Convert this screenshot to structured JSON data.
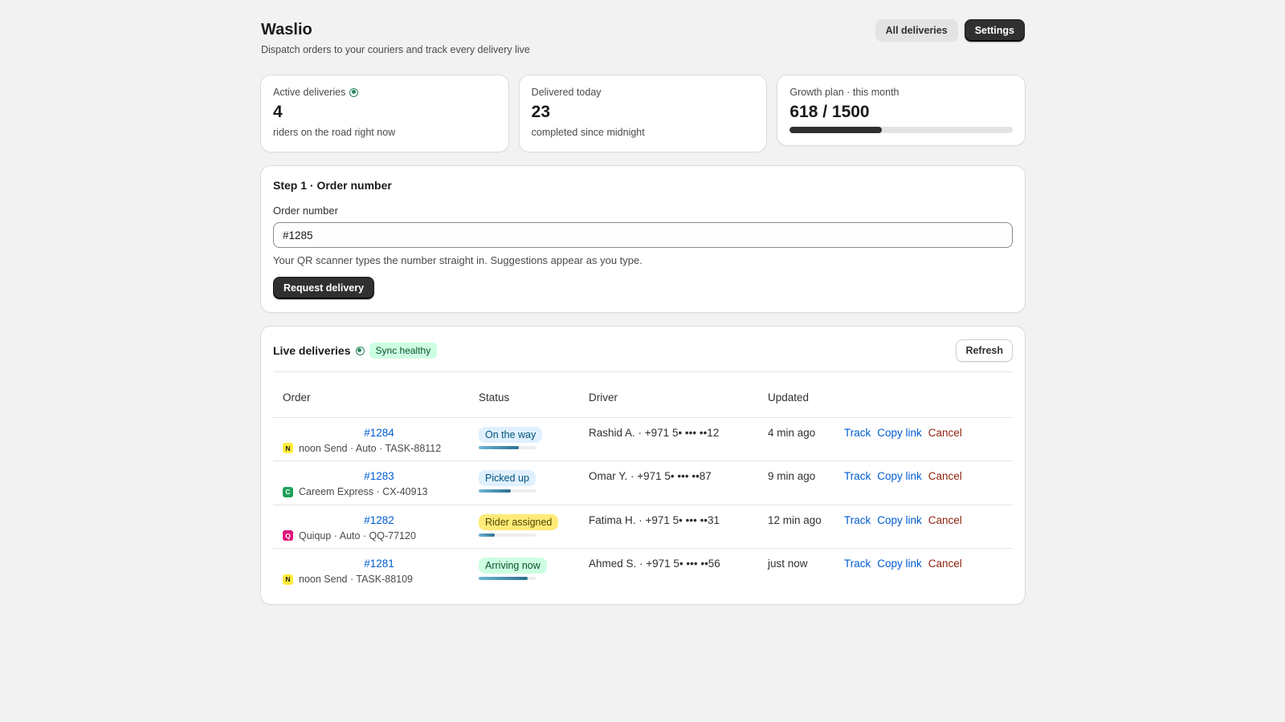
{
  "header": {
    "title": "Waslio",
    "subtitle": "Dispatch orders to your couriers and track every delivery live",
    "all_deliveries_label": "All deliveries",
    "settings_label": "Settings"
  },
  "stats": {
    "active": {
      "label": "Active deliveries",
      "value": "4",
      "sub": "riders on the road right now"
    },
    "delivered": {
      "label": "Delivered today",
      "value": "23",
      "sub": "completed since midnight"
    },
    "plan": {
      "label": "Growth plan · this month",
      "value": "618 / 1500",
      "used": 618,
      "limit": 1500
    }
  },
  "step": {
    "title": "Step 1 · Order number",
    "field_label": "Order number",
    "field_value": "#1285",
    "help": "Your QR scanner types the number straight in. Suggestions appear as you type.",
    "submit_label": "Request delivery"
  },
  "live": {
    "title": "Live deliveries",
    "sync_label": "Sync healthy",
    "refresh_label": "Refresh",
    "columns": [
      "Order",
      "Status",
      "Driver",
      "Updated"
    ],
    "rows": [
      {
        "order": "#1284",
        "courier_letter": "N",
        "courier_color": "#ffeb3b",
        "courier_text_color": "#1a1a1a",
        "meta": "noon Send · Auto · TASK-88112",
        "status": "On the way",
        "status_bg": "#e0f0ff",
        "status_fg": "#00527c",
        "progress": 0.7,
        "driver": "Rashid A. · +971 5• ••• ••12",
        "updated": "4 min ago",
        "track": "Track",
        "copy": "Copy link",
        "cancel": "Cancel"
      },
      {
        "order": "#1283",
        "courier_letter": "C",
        "courier_color": "#1fa05a",
        "courier_text_color": "#ffffff",
        "meta": "Careem Express · CX-40913",
        "status": "Picked up",
        "status_bg": "#e0f0ff",
        "status_fg": "#00527c",
        "progress": 0.55,
        "driver": "Omar Y. · +971 5• ••• ••87",
        "updated": "9 min ago",
        "track": "Track",
        "copy": "Copy link",
        "cancel": "Cancel"
      },
      {
        "order": "#1282",
        "courier_letter": "Q",
        "courier_color": "#e0157a",
        "courier_text_color": "#ffffff",
        "meta": "Quiqup · Auto · QQ-77120",
        "status": "Rider assigned",
        "status_bg": "#ffeb78",
        "status_fg": "#4f4700",
        "progress": 0.28,
        "driver": "Fatima H. · +971 5• ••• ••31",
        "updated": "12 min ago",
        "track": "Track",
        "copy": "Copy link",
        "cancel": "Cancel"
      },
      {
        "order": "#1281",
        "courier_letter": "N",
        "courier_color": "#ffeb3b",
        "courier_text_color": "#1a1a1a",
        "meta": "noon Send · TASK-88109",
        "status": "Arriving now",
        "status_bg": "#cdfee1",
        "status_fg": "#0c5132",
        "progress": 0.85,
        "driver": "Ahmed S. · +971 5• ••• ••56",
        "updated": "just now",
        "track": "Track",
        "copy": "Copy link",
        "cancel": "Cancel"
      }
    ]
  }
}
